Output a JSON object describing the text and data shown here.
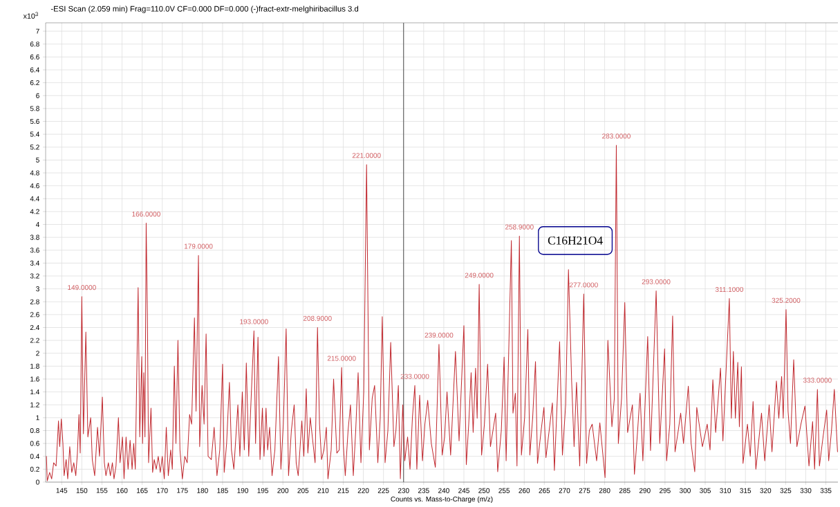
{
  "chart_data": {
    "type": "line",
    "title": "-ESI Scan (2.059 min) Frag=110.0V CF=0.000 DF=0.000 (-)fract-extr-melghiribacillus 3.d",
    "xlabel": "Counts vs. Mass-to-Charge (m/z)",
    "ylabel": "x10$^{3}$",
    "x": [
      141.2,
      141.4,
      142.0,
      142.5,
      143.0,
      143.6,
      144.2,
      144.5,
      144.9,
      145.3,
      145.6,
      146.1,
      146.5,
      147.0,
      147.5,
      148.0,
      148.5,
      148.9,
      149.3,
      149.6,
      150.0,
      150.4,
      151.0,
      151.5,
      152.2,
      152.6,
      153.2,
      153.9,
      154.4,
      155.1,
      155.6,
      156.0,
      156.6,
      157.1,
      157.6,
      158.0,
      158.5,
      159.1,
      159.5,
      160.1,
      160.5,
      161.0,
      161.5,
      162.0,
      162.5,
      162.9,
      163.3,
      164.0,
      164.4,
      164.9,
      165.1,
      165.4,
      165.7,
      166.0,
      166.3,
      166.6,
      167.2,
      167.6,
      168.0,
      168.5,
      169.0,
      169.5,
      170.0,
      170.5,
      171.0,
      171.5,
      172.1,
      172.5,
      173.0,
      173.4,
      173.9,
      174.4,
      175.0,
      175.6,
      176.2,
      176.8,
      177.3,
      178.0,
      178.4,
      179.0,
      179.3,
      179.9,
      180.4,
      180.9,
      181.4,
      182.2,
      182.9,
      183.6,
      184.3,
      185.0,
      185.4,
      186.0,
      186.7,
      187.2,
      187.8,
      188.8,
      189.3,
      189.9,
      190.4,
      190.9,
      191.5,
      192.8,
      193.2,
      193.8,
      194.3,
      194.9,
      195.3,
      195.8,
      196.2,
      196.7,
      197.3,
      198.0,
      198.9,
      199.5,
      200.1,
      200.8,
      201.4,
      202.1,
      202.8,
      203.3,
      203.8,
      204.7,
      205.2,
      205.8,
      206.2,
      206.8,
      207.4,
      208.0,
      208.6,
      209.1,
      209.6,
      210.2,
      210.8,
      211.2,
      212.0,
      212.6,
      213.4,
      214.0,
      214.6,
      215.0,
      215.5,
      216.2,
      216.8,
      217.5,
      218.1,
      218.7,
      219.4,
      220.1,
      220.8,
      221.5,
      222.2,
      222.8,
      223.6,
      224.2,
      224.7,
      225.4,
      226.1,
      226.8,
      227.6,
      228.1,
      228.7,
      229.2,
      229.8,
      230.3,
      231.0,
      231.6,
      232.2,
      232.8,
      233.3,
      234.0,
      234.7,
      235.3,
      236.0,
      236.9,
      237.9,
      238.8,
      239.6,
      240.2,
      240.8,
      241.7,
      242.9,
      243.8,
      245.0,
      245.6,
      246.2,
      246.8,
      247.3,
      247.9,
      248.3,
      248.8,
      249.4,
      250.1,
      250.9,
      251.6,
      252.9,
      253.4,
      254.3,
      255.0,
      255.5,
      256.8,
      257.2,
      257.8,
      258.2,
      258.8,
      259.3,
      260.1,
      260.9,
      261.4,
      262.1,
      262.8,
      263.3,
      264.2,
      264.9,
      265.4,
      266.2,
      267.0,
      267.5,
      268.8,
      269.5,
      270.3,
      271.0,
      271.8,
      272.4,
      273.0,
      273.8,
      274.8,
      275.5,
      276.2,
      276.9,
      278.0,
      278.8,
      280.1,
      280.8,
      281.8,
      282.4,
      282.9,
      283.4,
      284.2,
      285.0,
      285.7,
      286.9,
      287.4,
      288.2,
      288.8,
      289.5,
      290.7,
      291.4,
      292.8,
      293.7,
      294.9,
      295.4,
      296.2,
      296.9,
      297.5,
      298.3,
      298.9,
      299.6,
      300.8,
      301.5,
      302.4,
      302.9,
      304.3,
      305.5,
      306.2,
      306.9,
      307.6,
      308.8,
      309.4,
      311.0,
      311.5,
      312.0,
      312.5,
      313.1,
      313.5,
      314.0,
      314.4,
      315.5,
      316.2,
      316.9,
      317.6,
      319.0,
      319.8,
      320.9,
      321.6,
      322.7,
      323.3,
      324.0,
      324.4,
      325.1,
      325.6,
      326.2,
      327.0,
      327.8,
      328.8,
      329.8,
      330.8,
      331.7,
      332.2,
      332.9,
      333.4,
      334.3,
      335.2,
      335.7,
      336.4,
      337.1,
      337.9
    ],
    "series": [
      {
        "color": "#c0282e",
        "values": [
          0.4,
          0.02,
          0.15,
          0.05,
          0.3,
          0.25,
          0.95,
          0.55,
          0.98,
          0.6,
          0.1,
          0.35,
          0.05,
          0.55,
          0.15,
          0.3,
          0.1,
          0.45,
          1.05,
          0.45,
          2.88,
          0.75,
          2.33,
          0.7,
          1.0,
          0.35,
          0.1,
          0.85,
          0.4,
          1.32,
          0.3,
          0.1,
          0.3,
          0.1,
          0.3,
          0.05,
          0.25,
          1.0,
          0.3,
          0.7,
          0.05,
          0.7,
          0.2,
          0.65,
          0.2,
          0.6,
          0.2,
          3.02,
          0.7,
          1.95,
          0.6,
          1.7,
          0.7,
          4.02,
          2.6,
          0.3,
          1.15,
          0.15,
          0.35,
          0.2,
          0.4,
          0.15,
          0.4,
          0.05,
          0.85,
          0.1,
          0.5,
          0.2,
          1.8,
          0.6,
          2.2,
          0.5,
          0.05,
          0.4,
          0.3,
          1.05,
          0.9,
          2.55,
          1.1,
          3.52,
          0.55,
          1.5,
          0.9,
          2.3,
          0.4,
          0.35,
          0.85,
          0.1,
          0.5,
          1.83,
          0.15,
          0.6,
          1.55,
          0.5,
          0.2,
          1.2,
          0.4,
          1.4,
          0.5,
          1.85,
          0.4,
          2.35,
          0.6,
          2.25,
          0.35,
          1.15,
          0.4,
          1.15,
          0.5,
          0.85,
          0.1,
          0.5,
          1.95,
          0.2,
          0.9,
          2.38,
          0.1,
          0.8,
          1.2,
          0.3,
          0.1,
          0.95,
          0.4,
          1.45,
          0.45,
          1.0,
          0.65,
          0.3,
          2.4,
          0.9,
          0.35,
          0.5,
          0.85,
          0.05,
          0.5,
          1.6,
          0.45,
          0.5,
          1.78,
          0.6,
          0.1,
          0.8,
          1.2,
          0.1,
          0.8,
          1.7,
          0.3,
          1.4,
          4.93,
          0.5,
          1.3,
          1.5,
          0.3,
          1.0,
          2.57,
          0.3,
          0.8,
          2.17,
          0.55,
          0.8,
          1.5,
          0.05,
          1.2,
          0.33,
          0.7,
          0.2,
          1.0,
          1.5,
          0.2,
          1.35,
          0.33,
          0.9,
          1.27,
          0.6,
          0.23,
          2.14,
          0.42,
          0.7,
          1.4,
          0.42,
          2.03,
          0.64,
          2.43,
          0.27,
          0.9,
          1.7,
          0.77,
          1.77,
          0.99,
          3.07,
          0.42,
          0.9,
          1.83,
          0.55,
          1.07,
          0.16,
          0.8,
          1.94,
          0.33,
          3.75,
          1.07,
          1.38,
          0.25,
          3.82,
          0.42,
          1.0,
          2.37,
          0.42,
          1.0,
          1.87,
          0.29,
          0.8,
          1.16,
          0.38,
          0.8,
          1.23,
          0.18,
          2.18,
          0.42,
          1.2,
          3.3,
          1.55,
          0.55,
          1.55,
          0.25,
          2.92,
          0.29,
          0.8,
          0.9,
          0.33,
          0.92,
          0.07,
          2.2,
          0.86,
          1.3,
          5.23,
          0.6,
          1.3,
          2.79,
          0.77,
          1.2,
          0.12,
          0.8,
          1.38,
          0.33,
          2.26,
          0.49,
          2.97,
          0.6,
          2.07,
          0.33,
          0.9,
          2.58,
          0.47,
          0.8,
          1.07,
          0.6,
          1.49,
          0.6,
          0.16,
          1.16,
          0.55,
          0.9,
          0.5,
          1.59,
          0.77,
          1.77,
          0.64,
          2.85,
          0.99,
          2.03,
          0.99,
          1.86,
          0.86,
          1.79,
          0.29,
          0.9,
          0.4,
          1.25,
          0.2,
          1.07,
          0.33,
          1.2,
          0.47,
          1.57,
          0.99,
          1.64,
          0.99,
          2.68,
          1.1,
          0.6,
          1.9,
          0.55,
          0.9,
          1.18,
          0.25,
          0.94,
          0.2,
          1.44,
          0.25,
          0.7,
          1.12,
          0.33,
          0.8,
          1.44,
          0.47
        ]
      }
    ],
    "xlim": [
      141,
      338
    ],
    "ylim": [
      0,
      7.13
    ],
    "xticks": [
      145,
      150,
      155,
      160,
      165,
      170,
      175,
      180,
      185,
      190,
      195,
      200,
      205,
      210,
      215,
      220,
      225,
      230,
      235,
      240,
      245,
      250,
      255,
      260,
      265,
      270,
      275,
      280,
      285,
      290,
      295,
      300,
      305,
      310,
      315,
      320,
      325,
      330,
      335
    ],
    "yticks": [
      0,
      0.2,
      0.4,
      0.6,
      0.8,
      1,
      1.2,
      1.4,
      1.6,
      1.8,
      2,
      2.2,
      2.4,
      2.6,
      2.8,
      3,
      3.2,
      3.4,
      3.6,
      3.8,
      4,
      4.2,
      4.4,
      4.6,
      4.8,
      5,
      5.2,
      5.4,
      5.6,
      5.8,
      6,
      6.2,
      6.4,
      6.6,
      6.8,
      7
    ],
    "grid": true,
    "ref_lines": [
      {
        "axis": "x",
        "value": 230,
        "color": "#555555"
      }
    ],
    "annotations": [
      {
        "text": "149.0000",
        "x": 150.0,
        "y": 2.88
      },
      {
        "text": "166.0000",
        "x": 166.0,
        "y": 4.02
      },
      {
        "text": "179.0000",
        "x": 179.0,
        "y": 3.52
      },
      {
        "text": "193.0000",
        "x": 192.8,
        "y": 2.35
      },
      {
        "text": "208.9000",
        "x": 208.6,
        "y": 2.4
      },
      {
        "text": "215.0000",
        "x": 214.6,
        "y": 1.78
      },
      {
        "text": "221.0000",
        "x": 220.8,
        "y": 4.93
      },
      {
        "text": "233.0000",
        "x": 232.8,
        "y": 1.5
      },
      {
        "text": "239.0000",
        "x": 238.8,
        "y": 2.14
      },
      {
        "text": "249.0000",
        "x": 248.8,
        "y": 3.07
      },
      {
        "text": "258.9000",
        "x": 258.8,
        "y": 3.82
      },
      {
        "text": "277.0000",
        "x": 274.8,
        "y": 2.92
      },
      {
        "text": "283.0000",
        "x": 282.9,
        "y": 5.23
      },
      {
        "text": "293.0000",
        "x": 292.8,
        "y": 2.97
      },
      {
        "text": "311.1000",
        "x": 311.0,
        "y": 2.85
      },
      {
        "text": "325.2000",
        "x": 325.1,
        "y": 2.68
      },
      {
        "text": "333.0000",
        "x": 332.9,
        "y": 1.44
      },
      "C16H21O4"
    ]
  }
}
